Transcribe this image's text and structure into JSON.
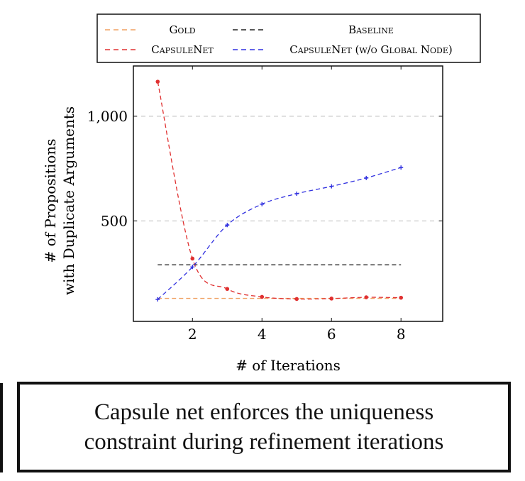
{
  "chart_data": {
    "type": "line",
    "title": "",
    "xlabel": "# of Iterations",
    "ylabel": [
      "# of Propositions",
      "with Duplicate Arguments"
    ],
    "xlim": [
      0.3,
      9.2
    ],
    "ylim": [
      20,
      1240
    ],
    "xticks": [
      2,
      4,
      6,
      8
    ],
    "xtick_labels": [
      "2",
      "4",
      "6",
      "8"
    ],
    "yticks": [
      500,
      1000
    ],
    "ytick_labels": [
      "500",
      "1,000"
    ],
    "grid": "horizontal dashed at y ticks",
    "legend_position": "top",
    "series": [
      {
        "name": "Gold",
        "color": "#f0a060",
        "style": "dashed",
        "marker": "none",
        "x": [
          1,
          2,
          3,
          4,
          5,
          6,
          7,
          8
        ],
        "y": [
          130,
          130,
          130,
          130,
          130,
          130,
          130,
          130
        ]
      },
      {
        "name": "Baseline",
        "color": "#222222",
        "style": "dashed",
        "marker": "none",
        "x": [
          1,
          2,
          3,
          4,
          5,
          6,
          7,
          8
        ],
        "y": [
          290,
          290,
          290,
          290,
          290,
          290,
          290,
          290
        ]
      },
      {
        "name": "CapsuleNet",
        "color": "#e03030",
        "style": "dashed",
        "marker": "dot",
        "x": [
          1,
          2,
          3,
          4,
          5,
          6,
          7,
          8
        ],
        "y": [
          1165,
          320,
          175,
          137,
          127,
          129,
          135,
          133
        ]
      },
      {
        "name": "CapsuleNet (w/o Global Node)",
        "color": "#3030e0",
        "style": "dashed",
        "marker": "plus",
        "x": [
          1,
          2,
          3,
          4,
          5,
          6,
          7,
          8
        ],
        "y": [
          125,
          280,
          480,
          580,
          630,
          665,
          705,
          755
        ]
      }
    ],
    "legend": [
      {
        "label": "Gold",
        "color": "#f0a060"
      },
      {
        "label": "Baseline",
        "color": "#222222"
      },
      {
        "label": "CapsuleNet",
        "color": "#e03030"
      },
      {
        "label": "CapsuleNet (w/o Global Node)",
        "color": "#3030e0"
      }
    ]
  },
  "caption": {
    "line1": "Capsule net enforces the uniqueness",
    "line2": "constraint during refinement iterations"
  }
}
